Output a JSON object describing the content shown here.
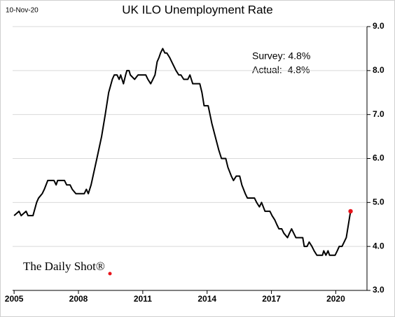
{
  "chart_data": {
    "type": "line",
    "title": "UK ILO Unemployment Rate",
    "date": "10-Nov-20",
    "annotations": [
      "Survey: 4.8%",
      "Actual:  4.8%"
    ],
    "watermark": "The Daily Shot®",
    "xlim": [
      2004.93,
      2021.26
    ],
    "xticks": [
      2005,
      2008,
      2011,
      2014,
      2017,
      2020
    ],
    "ylim": [
      3,
      9
    ],
    "yticks": [
      {
        "value": 3,
        "label": "3.0"
      },
      {
        "value": 4,
        "label": "4.0"
      },
      {
        "value": 5,
        "label": "5.0"
      },
      {
        "value": 6,
        "label": "6.0"
      },
      {
        "value": 7,
        "label": "7.0"
      },
      {
        "value": 8,
        "label": "8.0"
      },
      {
        "value": 9,
        "label": "9.0"
      }
    ],
    "grid": true,
    "end_marker_color": "#e8141b",
    "series": [
      {
        "name": "UK ILO Unemployment Rate",
        "color": "#000000",
        "x": [
          2005.0,
          2005.23,
          2005.33,
          2005.56,
          2005.65,
          2005.88,
          2006.05,
          2006.14,
          2006.31,
          2006.41,
          2006.57,
          2006.86,
          2006.96,
          2007.03,
          2007.35,
          2007.45,
          2007.61,
          2007.71,
          2007.88,
          2008.27,
          2008.37,
          2008.46,
          2008.59,
          2008.86,
          2009.08,
          2009.25,
          2009.41,
          2009.58,
          2009.67,
          2009.8,
          2009.9,
          2009.97,
          2010.1,
          2010.2,
          2010.26,
          2010.36,
          2010.42,
          2010.62,
          2010.78,
          2010.82,
          2011.14,
          2011.24,
          2011.37,
          2011.47,
          2011.57,
          2011.67,
          2011.76,
          2011.83,
          2011.93,
          2012.03,
          2012.12,
          2012.25,
          2012.35,
          2012.45,
          2012.55,
          2012.68,
          2012.78,
          2012.91,
          2013.1,
          2013.2,
          2013.33,
          2013.66,
          2013.76,
          2013.86,
          2014.05,
          2014.22,
          2014.38,
          2014.54,
          2014.67,
          2014.87,
          2014.97,
          2015.13,
          2015.23,
          2015.36,
          2015.52,
          2015.62,
          2015.78,
          2015.88,
          2016.21,
          2016.31,
          2016.44,
          2016.54,
          2016.7,
          2016.93,
          2017.03,
          2017.16,
          2017.25,
          2017.35,
          2017.48,
          2017.58,
          2017.75,
          2017.84,
          2017.94,
          2018.04,
          2018.14,
          2018.46,
          2018.53,
          2018.66,
          2018.76,
          2018.89,
          2018.99,
          2019.12,
          2019.38,
          2019.44,
          2019.54,
          2019.64,
          2019.71,
          2019.97,
          2020.07,
          2020.16,
          2020.29,
          2020.39,
          2020.49,
          2020.59,
          2020.69
        ],
        "values": [
          4.7,
          4.8,
          4.7,
          4.8,
          4.7,
          4.7,
          5.0,
          5.1,
          5.2,
          5.3,
          5.5,
          5.5,
          5.4,
          5.5,
          5.5,
          5.4,
          5.4,
          5.3,
          5.2,
          5.2,
          5.3,
          5.2,
          5.4,
          6.0,
          6.5,
          7.0,
          7.5,
          7.8,
          7.9,
          7.9,
          7.8,
          7.9,
          7.7,
          7.9,
          8.0,
          8.0,
          7.9,
          7.8,
          7.9,
          7.9,
          7.9,
          7.8,
          7.7,
          7.8,
          7.9,
          8.2,
          8.3,
          8.4,
          8.5,
          8.4,
          8.4,
          8.3,
          8.2,
          8.1,
          8.0,
          7.9,
          7.9,
          7.8,
          7.8,
          7.9,
          7.7,
          7.7,
          7.5,
          7.2,
          7.2,
          6.8,
          6.5,
          6.2,
          6.0,
          6.0,
          5.8,
          5.6,
          5.5,
          5.6,
          5.6,
          5.4,
          5.2,
          5.1,
          5.1,
          5.0,
          4.9,
          5.0,
          4.8,
          4.8,
          4.7,
          4.6,
          4.5,
          4.4,
          4.4,
          4.3,
          4.2,
          4.3,
          4.4,
          4.3,
          4.2,
          4.2,
          4.0,
          4.0,
          4.1,
          4.0,
          3.9,
          3.8,
          3.8,
          3.9,
          3.8,
          3.9,
          3.8,
          3.8,
          3.9,
          4.0,
          4.0,
          4.1,
          4.2,
          4.5,
          4.8
        ]
      }
    ]
  }
}
